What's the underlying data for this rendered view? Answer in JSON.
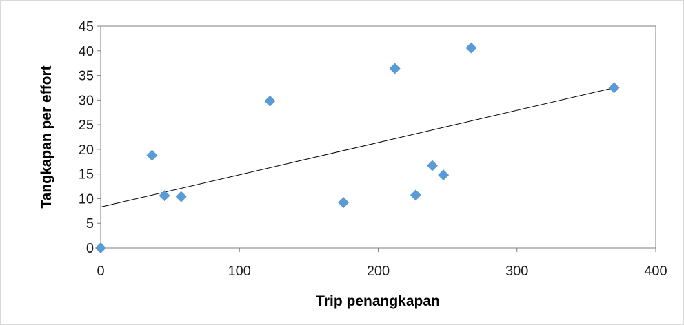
{
  "chart_data": {
    "type": "scatter",
    "title": "",
    "xlabel": "Trip penangkapan",
    "ylabel": "Tangkapan per effort",
    "xlim": [
      0,
      400
    ],
    "ylim": [
      0,
      45
    ],
    "x_ticks": [
      "0",
      "100",
      "200",
      "300",
      "400"
    ],
    "y_ticks": [
      "0",
      "5",
      "10",
      "15",
      "20",
      "25",
      "30",
      "35",
      "40",
      "45"
    ],
    "grid": false,
    "legend": "none",
    "marker": "diamond",
    "marker_color": "#5b9bd5",
    "trendline": {
      "type": "linear",
      "color": "#000000",
      "from": [
        0,
        8.3
      ],
      "to": [
        370,
        32.5
      ]
    },
    "points": [
      {
        "x": 0,
        "y": 0
      },
      {
        "x": 37,
        "y": 18.8
      },
      {
        "x": 46,
        "y": 10.6
      },
      {
        "x": 58,
        "y": 10.4
      },
      {
        "x": 122,
        "y": 29.8
      },
      {
        "x": 175,
        "y": 9.2
      },
      {
        "x": 212,
        "y": 36.4
      },
      {
        "x": 227,
        "y": 10.7
      },
      {
        "x": 239,
        "y": 16.7
      },
      {
        "x": 247,
        "y": 14.8
      },
      {
        "x": 267,
        "y": 40.6
      },
      {
        "x": 370,
        "y": 32.5
      }
    ]
  }
}
